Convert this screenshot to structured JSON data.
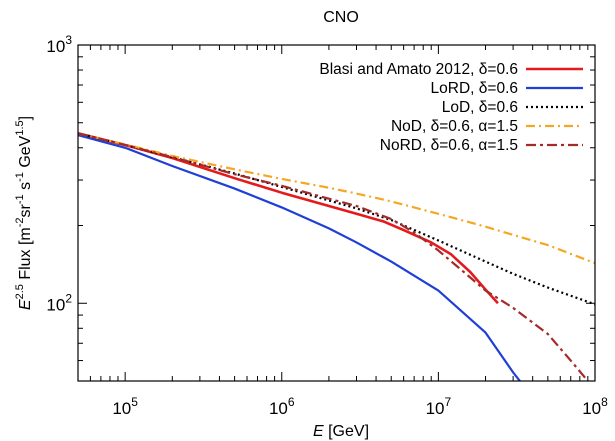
{
  "chart_data": {
    "type": "line",
    "title": "CNO",
    "xlabel": {
      "var": "E",
      "unit": " [GeV]"
    },
    "ylabel": {
      "var": "E",
      "exp": "2.5",
      "rest": " Flux [m",
      "u1": "-2",
      "sr": "sr",
      "u2": "-1",
      "s": " s",
      "u3": "-1",
      "gev": " GeV",
      "u4": "1.5",
      "close": "]"
    },
    "xscale": "log",
    "yscale": "log",
    "xlim": [
      50000,
      100000000
    ],
    "ylim": [
      50,
      1000
    ],
    "x_ticks": [
      {
        "value": 100000,
        "base": "10",
        "exp": "5"
      },
      {
        "value": 1000000,
        "base": "10",
        "exp": "6"
      },
      {
        "value": 10000000,
        "base": "10",
        "exp": "7"
      },
      {
        "value": 100000000,
        "base": "10",
        "exp": "8"
      }
    ],
    "y_ticks": [
      {
        "value": 100,
        "base": "10",
        "exp": "2"
      },
      {
        "value": 1000,
        "base": "10",
        "exp": "3"
      }
    ],
    "grid": false,
    "legend_position": "top-right",
    "series": [
      {
        "name": "Blasi and Amato 2012, δ=0.6",
        "color": "#e41a1c",
        "dash": "solid",
        "width": 2.6,
        "points": [
          [
            50000,
            455
          ],
          [
            100000,
            410
          ],
          [
            200000,
            365
          ],
          [
            500000,
            305
          ],
          [
            1000000,
            268
          ],
          [
            2000000,
            238
          ],
          [
            3000000,
            222
          ],
          [
            4500000,
            207
          ],
          [
            6000000,
            192
          ],
          [
            9000000,
            172
          ],
          [
            12000000,
            155
          ],
          [
            16000000,
            132
          ],
          [
            20000000,
            113
          ],
          [
            24000000,
            100
          ]
        ]
      },
      {
        "name": "LoRD, δ=0.6",
        "color": "#1f3fd6",
        "dash": "solid",
        "width": 2.2,
        "points": [
          [
            50000,
            448
          ],
          [
            100000,
            400
          ],
          [
            200000,
            340
          ],
          [
            500000,
            278
          ],
          [
            1000000,
            235
          ],
          [
            2000000,
            195
          ],
          [
            3000000,
            172
          ],
          [
            5000000,
            145
          ],
          [
            10000000,
            112
          ],
          [
            20000000,
            77
          ],
          [
            30000000,
            54
          ],
          [
            34000000,
            49
          ]
        ]
      },
      {
        "name": "LoD, δ=0.6",
        "color": "#000000",
        "dash": "2 3",
        "width": 2.2,
        "points": [
          [
            50000,
            455
          ],
          [
            100000,
            410
          ],
          [
            200000,
            368
          ],
          [
            500000,
            318
          ],
          [
            1000000,
            282
          ],
          [
            2000000,
            250
          ],
          [
            3000000,
            233
          ],
          [
            5000000,
            210
          ],
          [
            10000000,
            175
          ],
          [
            20000000,
            145
          ],
          [
            30000000,
            130
          ],
          [
            50000000,
            115
          ],
          [
            100000000,
            99
          ]
        ]
      },
      {
        "name": "NoD, δ=0.6, α=1.5",
        "color": "#f5a623",
        "dash": "9 4 2 4",
        "width": 2.2,
        "points": [
          [
            50000,
            455
          ],
          [
            100000,
            412
          ],
          [
            200000,
            372
          ],
          [
            500000,
            330
          ],
          [
            1000000,
            303
          ],
          [
            2000000,
            280
          ],
          [
            3000000,
            266
          ],
          [
            5000000,
            248
          ],
          [
            10000000,
            222
          ],
          [
            20000000,
            198
          ],
          [
            30000000,
            184
          ],
          [
            50000000,
            168
          ],
          [
            100000000,
            143
          ]
        ]
      },
      {
        "name": "NoRD, δ=0.6, α=1.5",
        "color": "#a52a2a",
        "dash": "10 4 3 4",
        "width": 2.2,
        "points": [
          [
            50000,
            455
          ],
          [
            100000,
            410
          ],
          [
            200000,
            368
          ],
          [
            500000,
            316
          ],
          [
            1000000,
            285
          ],
          [
            2000000,
            254
          ],
          [
            3000000,
            238
          ],
          [
            5000000,
            212
          ],
          [
            7000000,
            188
          ],
          [
            10000000,
            160
          ],
          [
            15000000,
            130
          ],
          [
            20000000,
            112
          ],
          [
            30000000,
            96
          ],
          [
            50000000,
            76
          ],
          [
            70000000,
            60
          ],
          [
            90000000,
            50
          ]
        ]
      }
    ]
  }
}
